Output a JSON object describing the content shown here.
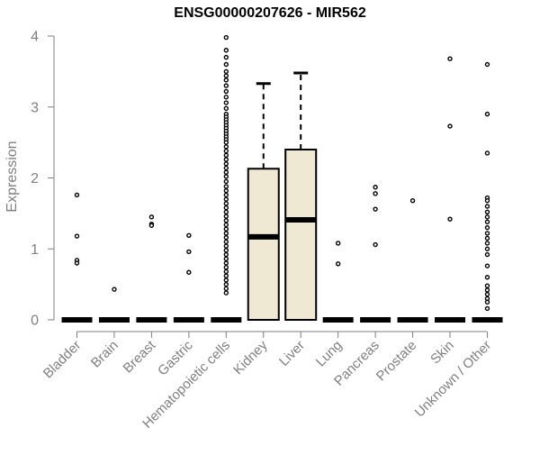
{
  "chart_data": {
    "type": "boxplot",
    "title": "ENSG00000207626 - MIR562",
    "xlabel": "",
    "ylabel": "Expression",
    "ylim": [
      0,
      4
    ],
    "yticks": [
      0,
      1,
      2,
      3,
      4
    ],
    "box_color": "#efe8d2",
    "text_color": "#7f7f7f",
    "categories": [
      "Bladder",
      "Brain",
      "Breast",
      "Gastric",
      "Hematopoietic cells",
      "Kidney",
      "Liver",
      "Lung",
      "Pancreas",
      "Prostate",
      "Skin",
      "Unknown / Other"
    ],
    "boxes": [
      {
        "category": "Bladder",
        "q1": 0,
        "median": 0,
        "q3": 0,
        "whisker_low": 0,
        "whisker_high": 0,
        "outliers": [
          1.76,
          1.18,
          0.84,
          0.8
        ]
      },
      {
        "category": "Brain",
        "q1": 0,
        "median": 0,
        "q3": 0,
        "whisker_low": 0,
        "whisker_high": 0,
        "outliers": [
          0.43
        ]
      },
      {
        "category": "Breast",
        "q1": 0,
        "median": 0,
        "q3": 0,
        "whisker_low": 0,
        "whisker_high": 0,
        "outliers": [
          1.45,
          1.35,
          1.33
        ]
      },
      {
        "category": "Gastric",
        "q1": 0,
        "median": 0,
        "q3": 0,
        "whisker_low": 0,
        "whisker_high": 0,
        "outliers": [
          1.19,
          0.96,
          0.67
        ]
      },
      {
        "category": "Hematopoietic cells",
        "q1": 0,
        "median": 0,
        "q3": 0,
        "whisker_low": 0,
        "whisker_high": 0,
        "outliers": [
          3.98,
          3.8,
          3.7,
          3.6,
          3.5,
          3.44,
          3.38,
          3.3,
          3.22,
          3.14,
          3.06,
          2.98,
          2.9,
          2.86,
          2.82,
          2.78,
          2.74,
          2.7,
          2.66,
          2.62,
          2.58,
          2.54,
          2.5,
          2.44,
          2.38,
          2.32,
          2.26,
          2.2,
          2.14,
          2.08,
          2.02,
          1.95,
          1.88,
          1.82,
          1.76,
          1.7,
          1.64,
          1.58,
          1.52,
          1.46,
          1.4,
          1.34,
          1.28,
          1.22,
          1.16,
          1.1,
          1.04,
          0.98,
          0.92,
          0.86,
          0.8,
          0.74,
          0.68,
          0.62,
          0.56,
          0.5,
          0.44,
          0.38
        ]
      },
      {
        "category": "Kidney",
        "q1": 0,
        "median": 1.17,
        "q3": 2.13,
        "whisker_low": 0,
        "whisker_high": 3.33,
        "outliers": []
      },
      {
        "category": "Liver",
        "q1": 0,
        "median": 1.41,
        "q3": 2.4,
        "whisker_low": 0,
        "whisker_high": 3.48,
        "outliers": []
      },
      {
        "category": "Lung",
        "q1": 0,
        "median": 0,
        "q3": 0,
        "whisker_low": 0,
        "whisker_high": 0,
        "outliers": [
          1.08,
          0.79
        ]
      },
      {
        "category": "Pancreas",
        "q1": 0,
        "median": 0,
        "q3": 0,
        "whisker_low": 0,
        "whisker_high": 0,
        "outliers": [
          1.87,
          1.78,
          1.56,
          1.06
        ]
      },
      {
        "category": "Prostate",
        "q1": 0,
        "median": 0,
        "q3": 0,
        "whisker_low": 0,
        "whisker_high": 0,
        "outliers": [
          1.68
        ]
      },
      {
        "category": "Skin",
        "q1": 0,
        "median": 0,
        "q3": 0,
        "whisker_low": 0,
        "whisker_high": 0,
        "outliers": [
          3.68,
          2.73,
          1.42
        ]
      },
      {
        "category": "Unknown / Other",
        "q1": 0,
        "median": 0,
        "q3": 0,
        "whisker_low": 0,
        "whisker_high": 0,
        "outliers": [
          3.6,
          2.9,
          2.35,
          1.72,
          1.68,
          1.6,
          1.52,
          1.45,
          1.38,
          1.3,
          1.22,
          1.15,
          1.08,
          1.0,
          0.92,
          0.76,
          0.6,
          0.48,
          0.42,
          0.36,
          0.3,
          0.25,
          0.16
        ]
      }
    ]
  }
}
